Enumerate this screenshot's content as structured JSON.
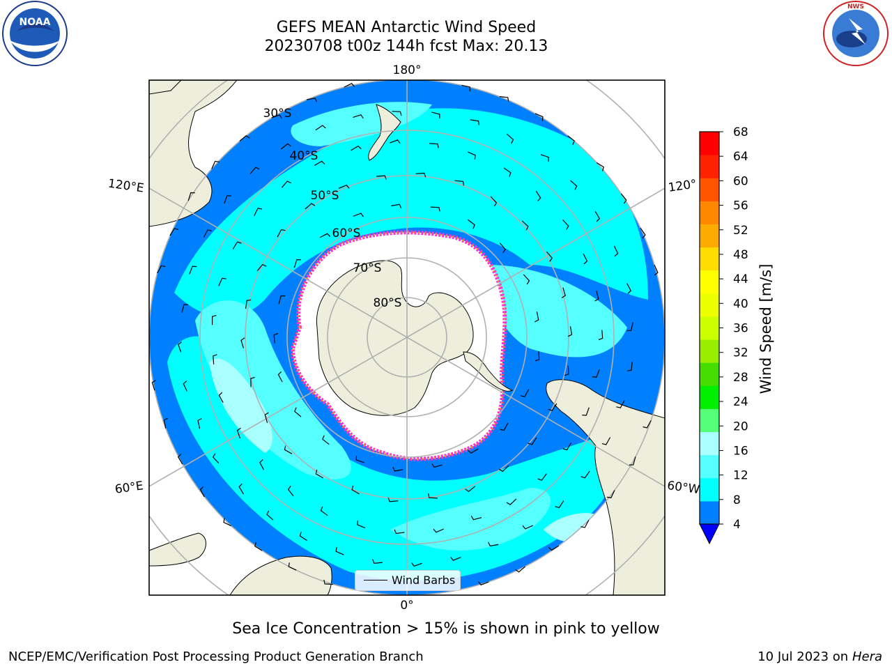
{
  "header": {
    "title_line1": "GEFS MEAN Antarctic Wind Speed",
    "title_line2": "20230708 t00z 144h fcst   Max: 20.13"
  },
  "logos": {
    "left_name": "NOAA",
    "right_name": "NATIONAL WEATHER SERVICE"
  },
  "map": {
    "projection": "south-polar-stereographic",
    "longitude_labels": {
      "top": "180°",
      "bottom": "0°",
      "left_upper": "120°E",
      "left_lower": "60°E",
      "right_upper": "120°",
      "right_lower": "60°W"
    },
    "latitude_labels": [
      "30°S",
      "40°S",
      "50°S",
      "60°S",
      "70°S",
      "80°S"
    ],
    "legend_label": "Wind Barbs",
    "colors": {
      "land": "#eeeedc",
      "ice": "#ffffff",
      "ice_edge": "#ff33cc",
      "ocean_4_8": "#0080ff",
      "ocean_8_12": "#00ffff",
      "ocean_12_16": "#55ffff",
      "ocean_16_20": "#aaffff",
      "grid": "#b0b0b0"
    }
  },
  "colorbar": {
    "label": "Wind Speed [m/s]",
    "ticks": [
      "68",
      "64",
      "60",
      "56",
      "52",
      "48",
      "44",
      "40",
      "36",
      "32",
      "28",
      "24",
      "20",
      "16",
      "12",
      "8",
      "4"
    ],
    "colors_bottom_to_top": [
      "#0080ff",
      "#00ffff",
      "#55ffff",
      "#aaffff",
      "#55ff77",
      "#00ee00",
      "#44dd00",
      "#99ee00",
      "#ccff00",
      "#eeff00",
      "#ffff00",
      "#ffdd00",
      "#ffaa00",
      "#ff8800",
      "#ff5500",
      "#ff2200",
      "#ff0000"
    ],
    "extend_color": "#0000ff"
  },
  "caption": "Sea Ice Concentration > 15% is shown in pink to yellow",
  "footer": {
    "left": "NCEP/EMC/Verification Post Processing Product Generation Branch",
    "right_prefix": "10 Jul 2023 on ",
    "right_host": "Hera"
  }
}
